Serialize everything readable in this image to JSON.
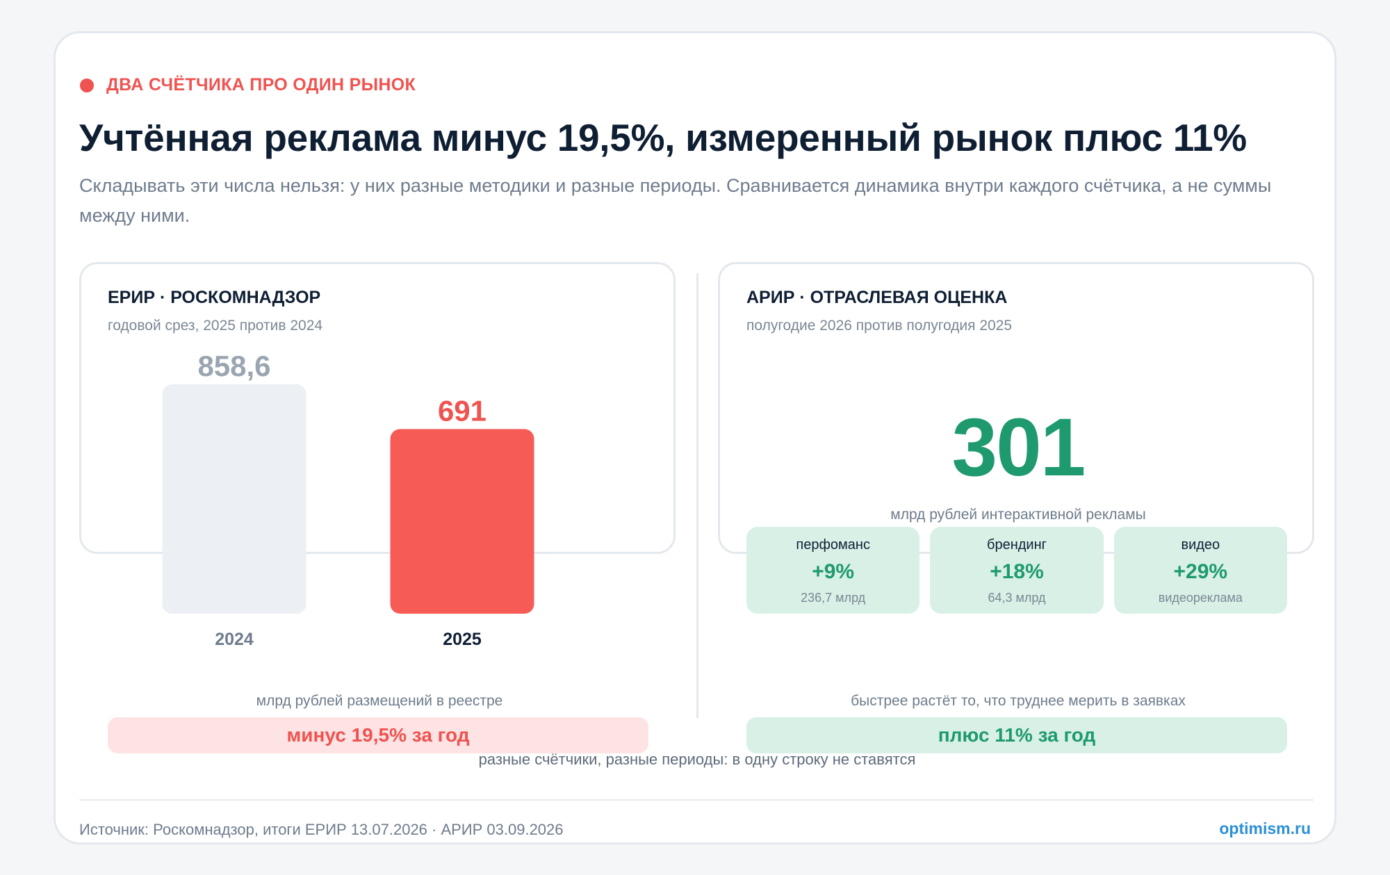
{
  "header": {
    "kicker": "ДВА СЧЁТЧИКА ПРО ОДИН РЫНОК",
    "title": "Учтённая реклама минус 19,5%, измеренный рынок плюс 11%",
    "subtitle": "Складывать эти числа нельзя: у них разные методики и разные периоды. Сравнивается динамика внутри каждого счётчика, а не суммы между ними."
  },
  "left_panel": {
    "title": "ЕРИР · РОСКОМНАДЗОР",
    "subtitle": "годовой срез, 2025 против 2024",
    "unit": "млрд рублей размещений в реестре",
    "pill": "минус 19,5% за год"
  },
  "right_panel": {
    "title": "АРИР · ОТРАСЛЕВАЯ ОЦЕНКА",
    "subtitle": "полугодие 2026 против полугодия 2025",
    "big_value": "301",
    "big_unit": "млрд рублей интерактивной рекламы",
    "tiles": [
      {
        "label": "перфоманс",
        "value": "+9%",
        "note": "236,7 млрд"
      },
      {
        "label": "брендинг",
        "value": "+18%",
        "note": "64,3 млрд"
      },
      {
        "label": "видео",
        "value": "+29%",
        "note": "видеореклама"
      }
    ],
    "unit": "быстрее растёт то, что труднее мерить в заявках",
    "pill": "плюс 11% за год"
  },
  "caption": "разные счётчики, разные периоды: в одну строку не ставятся",
  "footer": {
    "source": "Источник: Роскомнадзор, итоги ЕРИР 13.07.2026 · АРИР 03.09.2026",
    "brand": "optimism.ru"
  },
  "colors": {
    "accent_red": "#ef5350",
    "accent_green": "#1e9a6e",
    "bar_prev": "#eceff3",
    "bar_curr": "#f65b55",
    "label_prev": "#9aa5b1",
    "label_curr": "#ef5350"
  },
  "chart_data": {
    "type": "bar",
    "categories": [
      "2024",
      "2025"
    ],
    "values": [
      858.6,
      691
    ],
    "value_labels": [
      "858,6",
      "691"
    ],
    "title": "",
    "xlabel": "млрд рублей размещений в реестре",
    "ylabel": "",
    "ylim": [
      0,
      858.6
    ],
    "grid": false
  }
}
